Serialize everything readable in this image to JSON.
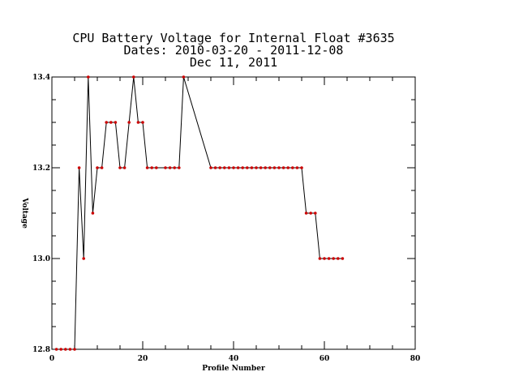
{
  "chart_data": {
    "type": "line",
    "title_lines": [
      "CPU Battery Voltage for Internal Float #3635",
      "Dates:  2010-03-20 -  2011-12-08",
      "Dec 11, 2011"
    ],
    "xlabel": "Profile Number",
    "ylabel": "Voltage",
    "xlim": [
      0,
      80
    ],
    "ylim": [
      12.8,
      13.4
    ],
    "x_ticks": [
      0,
      20,
      40,
      60,
      80
    ],
    "x_tick_labels": [
      "0",
      "20",
      "40",
      "60",
      "80"
    ],
    "y_ticks": [
      12.8,
      13.0,
      13.2,
      13.4
    ],
    "y_tick_labels": [
      "12.8",
      "13.0",
      "13.2",
      "13.4"
    ],
    "grid": false,
    "legend": "none",
    "line_color": "#000000",
    "marker_color": "#cc0000",
    "series": [
      {
        "x": [
          1,
          2,
          3,
          4,
          5,
          6,
          7,
          8,
          9,
          10,
          11,
          12,
          13,
          14,
          15,
          16,
          17,
          18,
          19,
          20,
          21,
          22,
          23,
          25,
          26,
          27,
          28,
          29,
          35,
          36,
          37,
          38,
          39,
          40,
          41,
          42,
          43,
          44,
          45,
          46,
          47,
          48,
          49,
          50,
          51,
          52,
          53,
          54,
          55,
          56,
          57,
          58,
          59,
          60,
          61,
          62,
          63,
          64
        ],
        "y": [
          12.8,
          12.8,
          12.8,
          12.8,
          12.8,
          13.2,
          13.0,
          13.4,
          13.1,
          13.2,
          13.2,
          13.3,
          13.3,
          13.3,
          13.2,
          13.2,
          13.3,
          13.4,
          13.3,
          13.3,
          13.2,
          13.2,
          13.2,
          13.2,
          13.2,
          13.2,
          13.2,
          13.4,
          13.2,
          13.2,
          13.2,
          13.2,
          13.2,
          13.2,
          13.2,
          13.2,
          13.2,
          13.2,
          13.2,
          13.2,
          13.2,
          13.2,
          13.2,
          13.2,
          13.2,
          13.2,
          13.2,
          13.2,
          13.2,
          13.1,
          13.1,
          13.1,
          13.0,
          13.0,
          13.0,
          13.0,
          13.0,
          13.0
        ]
      }
    ]
  }
}
